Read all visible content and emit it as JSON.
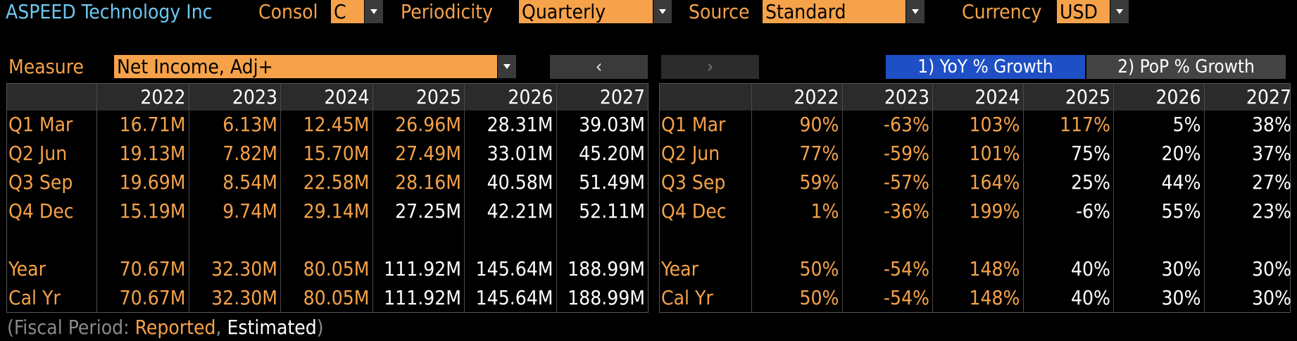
{
  "top_bar": {
    "company": "ASPEED Technology Inc",
    "consol_label": "Consol",
    "consol_value": "C",
    "periodicity_label": "Periodicity",
    "periodicity_value": "Quarterly",
    "source_label": "Source",
    "source_value": "Standard",
    "currency_label": "Currency",
    "currency_value": "USD"
  },
  "measure": {
    "label": "Measure",
    "value": "Net Income, Adj+",
    "prev_glyph": "‹",
    "next_glyph": "›"
  },
  "tabs": [
    {
      "label": "1) YoY % Growth",
      "active": true
    },
    {
      "label": "2) PoP % Growth",
      "active": false
    }
  ],
  "years": [
    "2022",
    "2023",
    "2024",
    "2025",
    "2026",
    "2027"
  ],
  "value_table": {
    "rows": [
      {
        "label": "Q1 Mar",
        "values": [
          "16.71M",
          "6.13M",
          "12.45M",
          "26.96M",
          "28.31M",
          "39.03M"
        ],
        "status": [
          "r",
          "r",
          "r",
          "r",
          "e",
          "e"
        ]
      },
      {
        "label": "Q2 Jun",
        "values": [
          "19.13M",
          "7.82M",
          "15.70M",
          "27.49M",
          "33.01M",
          "45.20M"
        ],
        "status": [
          "r",
          "r",
          "r",
          "r",
          "e",
          "e"
        ]
      },
      {
        "label": "Q3 Sep",
        "values": [
          "19.69M",
          "8.54M",
          "22.58M",
          "28.16M",
          "40.58M",
          "51.49M"
        ],
        "status": [
          "r",
          "r",
          "r",
          "r",
          "e",
          "e"
        ]
      },
      {
        "label": "Q4 Dec",
        "values": [
          "15.19M",
          "9.74M",
          "29.14M",
          "27.25M",
          "42.21M",
          "52.11M"
        ],
        "status": [
          "r",
          "r",
          "r",
          "e",
          "e",
          "e"
        ]
      },
      {
        "label": "",
        "values": [
          "",
          "",
          "",
          "",
          "",
          ""
        ],
        "status": [
          "r",
          "r",
          "r",
          "r",
          "r",
          "r"
        ]
      },
      {
        "label": "Year",
        "values": [
          "70.67M",
          "32.30M",
          "80.05M",
          "111.92M",
          "145.64M",
          "188.99M"
        ],
        "status": [
          "r",
          "r",
          "r",
          "e",
          "e",
          "e"
        ]
      },
      {
        "label": "Cal Yr",
        "values": [
          "70.67M",
          "32.30M",
          "80.05M",
          "111.92M",
          "145.64M",
          "188.99M"
        ],
        "status": [
          "r",
          "r",
          "r",
          "e",
          "e",
          "e"
        ]
      }
    ]
  },
  "growth_table": {
    "rows": [
      {
        "label": "Q1 Mar",
        "values": [
          "90%",
          "-63%",
          "103%",
          "117%",
          "5%",
          "38%"
        ],
        "status": [
          "r",
          "r",
          "r",
          "r",
          "e",
          "e"
        ]
      },
      {
        "label": "Q2 Jun",
        "values": [
          "77%",
          "-59%",
          "101%",
          "75%",
          "20%",
          "37%"
        ],
        "status": [
          "r",
          "r",
          "r",
          "e",
          "e",
          "e"
        ]
      },
      {
        "label": "Q3 Sep",
        "values": [
          "59%",
          "-57%",
          "164%",
          "25%",
          "44%",
          "27%"
        ],
        "status": [
          "r",
          "r",
          "r",
          "e",
          "e",
          "e"
        ]
      },
      {
        "label": "Q4 Dec",
        "values": [
          "1%",
          "-36%",
          "199%",
          "-6%",
          "55%",
          "23%"
        ],
        "status": [
          "r",
          "r",
          "r",
          "e",
          "e",
          "e"
        ]
      },
      {
        "label": "",
        "values": [
          "",
          "",
          "",
          "",
          "",
          ""
        ],
        "status": [
          "r",
          "r",
          "r",
          "r",
          "r",
          "r"
        ]
      },
      {
        "label": "Year",
        "values": [
          "50%",
          "-54%",
          "148%",
          "40%",
          "30%",
          "30%"
        ],
        "status": [
          "r",
          "r",
          "r",
          "e",
          "e",
          "e"
        ]
      },
      {
        "label": "Cal Yr",
        "values": [
          "50%",
          "-54%",
          "148%",
          "40%",
          "30%",
          "30%"
        ],
        "status": [
          "r",
          "r",
          "r",
          "e",
          "e",
          "e"
        ]
      }
    ]
  },
  "footer": {
    "open": "(Fiscal Period: ",
    "reported": "Reported",
    "sep": ", ",
    "estimated": "Estimated",
    "close": ")"
  },
  "colors": {
    "reported": "#f5a24a",
    "estimated": "#ffffff",
    "title": "#6cc8f0",
    "active_tab": "#1e4fc4"
  }
}
